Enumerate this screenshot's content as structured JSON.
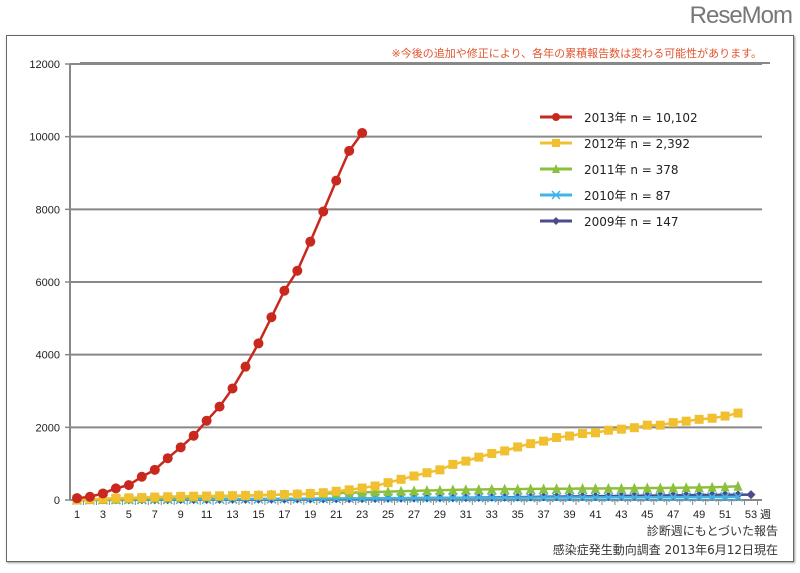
{
  "brand": "ReseMom",
  "note": "※今後の追加や修正により、各年の累積報告数は変わる可能性があります。",
  "footer": {
    "line1": "診断週にもとづいた報告",
    "line2": "感染症発生動向調査 2013年6月12日現在"
  },
  "chart_data": {
    "type": "line",
    "title": "",
    "xlabel": "週",
    "ylabel": "",
    "xlim": [
      1,
      53
    ],
    "ylim": [
      0,
      12000
    ],
    "yticks": [
      0,
      2000,
      4000,
      6000,
      8000,
      10000,
      12000
    ],
    "xticks": [
      1,
      3,
      5,
      7,
      9,
      11,
      13,
      15,
      17,
      19,
      21,
      23,
      25,
      27,
      29,
      31,
      33,
      35,
      37,
      39,
      41,
      43,
      45,
      47,
      49,
      51,
      53
    ],
    "grid": true,
    "legend_position": "top-right",
    "series": [
      {
        "name": "2013年 n = 10,102",
        "color": "#c8281e",
        "marker": "circle",
        "values": [
          50,
          90,
          180,
          320,
          410,
          640,
          830,
          1150,
          1450,
          1770,
          2180,
          2570,
          3070,
          3670,
          4310,
          5030,
          5760,
          6310,
          7110,
          7940,
          8790,
          9610,
          10102
        ]
      },
      {
        "name": "2012年 n = 2,392",
        "color": "#f0c030",
        "marker": "square",
        "values": [
          10,
          20,
          30,
          50,
          60,
          70,
          80,
          90,
          100,
          105,
          110,
          115,
          120,
          125,
          130,
          140,
          150,
          160,
          180,
          200,
          240,
          280,
          330,
          385,
          477,
          570,
          660,
          750,
          830,
          980,
          1070,
          1180,
          1280,
          1350,
          1460,
          1550,
          1620,
          1720,
          1760,
          1830,
          1850,
          1920,
          1950,
          1990,
          2060,
          2060,
          2130,
          2170,
          2220,
          2250,
          2310,
          2392
        ]
      },
      {
        "name": "2011年 n = 378",
        "color": "#8cc03c",
        "marker": "triangle",
        "values": [
          5,
          10,
          15,
          20,
          30,
          40,
          50,
          60,
          70,
          80,
          90,
          100,
          110,
          120,
          130,
          140,
          150,
          160,
          170,
          180,
          190,
          200,
          210,
          220,
          230,
          240,
          250,
          260,
          270,
          280,
          285,
          290,
          295,
          300,
          300,
          305,
          305,
          310,
          310,
          315,
          315,
          320,
          320,
          325,
          330,
          330,
          335,
          340,
          345,
          350,
          360,
          378
        ]
      },
      {
        "name": "2010年 n = 87",
        "color": "#40b4e6",
        "marker": "x",
        "values": [
          2,
          4,
          6,
          8,
          10,
          12,
          14,
          16,
          18,
          20,
          22,
          24,
          26,
          28,
          30,
          32,
          34,
          36,
          38,
          40,
          42,
          44,
          46,
          48,
          50,
          52,
          54,
          56,
          58,
          60,
          62,
          63,
          64,
          65,
          66,
          67,
          68,
          69,
          70,
          71,
          72,
          73,
          74,
          75,
          76,
          77,
          78,
          79,
          80,
          82,
          84,
          87
        ]
      },
      {
        "name": "2009年 n = 147",
        "color": "#4a4c8c",
        "marker": "diamond",
        "values": [
          1,
          2,
          3,
          4,
          5,
          6,
          7,
          8,
          9,
          10,
          12,
          14,
          16,
          18,
          20,
          22,
          24,
          26,
          28,
          30,
          33,
          36,
          39,
          42,
          45,
          48,
          51,
          54,
          57,
          60,
          64,
          68,
          72,
          76,
          80,
          84,
          88,
          92,
          96,
          100,
          104,
          108,
          112,
          116,
          120,
          124,
          128,
          132,
          136,
          140,
          143,
          145,
          147
        ]
      }
    ]
  }
}
